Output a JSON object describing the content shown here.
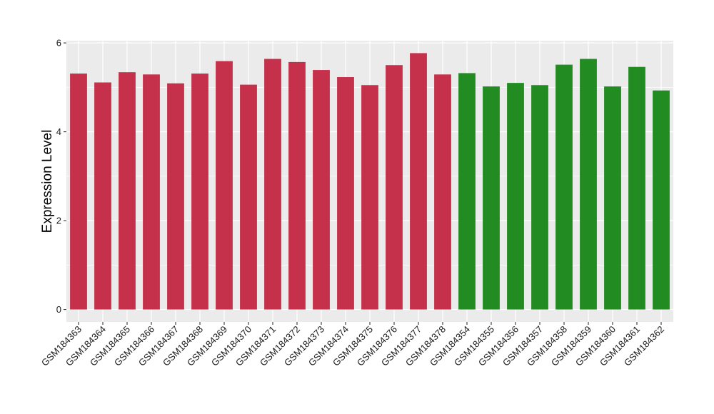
{
  "chart_data": {
    "type": "bar",
    "title": "",
    "xlabel": "",
    "ylabel": "Expression Level",
    "ylim": [
      -0.28,
      6.05
    ],
    "yticks": [
      0,
      2,
      4,
      6
    ],
    "grid": true,
    "legend": "none",
    "panel_background": "#ebebeb",
    "grid_color": "#ffffff",
    "group_colors": {
      "group_a": "#c5304a",
      "group_b": "#228b22"
    },
    "bars": [
      {
        "label": "GSM184363",
        "value": 5.31,
        "group": "group_a"
      },
      {
        "label": "GSM184364",
        "value": 5.11,
        "group": "group_a"
      },
      {
        "label": "GSM184365",
        "value": 5.34,
        "group": "group_a"
      },
      {
        "label": "GSM184366",
        "value": 5.29,
        "group": "group_a"
      },
      {
        "label": "GSM184367",
        "value": 5.09,
        "group": "group_a"
      },
      {
        "label": "GSM184368",
        "value": 5.31,
        "group": "group_a"
      },
      {
        "label": "GSM184369",
        "value": 5.59,
        "group": "group_a"
      },
      {
        "label": "GSM184370",
        "value": 5.06,
        "group": "group_a"
      },
      {
        "label": "GSM184371",
        "value": 5.64,
        "group": "group_a"
      },
      {
        "label": "GSM184372",
        "value": 5.57,
        "group": "group_a"
      },
      {
        "label": "GSM184373",
        "value": 5.39,
        "group": "group_a"
      },
      {
        "label": "GSM184374",
        "value": 5.23,
        "group": "group_a"
      },
      {
        "label": "GSM184375",
        "value": 5.05,
        "group": "group_a"
      },
      {
        "label": "GSM184376",
        "value": 5.5,
        "group": "group_a"
      },
      {
        "label": "GSM184377",
        "value": 5.77,
        "group": "group_a"
      },
      {
        "label": "GSM184378",
        "value": 5.29,
        "group": "group_a"
      },
      {
        "label": "GSM184354",
        "value": 5.32,
        "group": "group_b"
      },
      {
        "label": "GSM184355",
        "value": 5.02,
        "group": "group_b"
      },
      {
        "label": "GSM184356",
        "value": 5.1,
        "group": "group_b"
      },
      {
        "label": "GSM184357",
        "value": 5.05,
        "group": "group_b"
      },
      {
        "label": "GSM184358",
        "value": 5.51,
        "group": "group_b"
      },
      {
        "label": "GSM184359",
        "value": 5.64,
        "group": "group_b"
      },
      {
        "label": "GSM184360",
        "value": 5.02,
        "group": "group_b"
      },
      {
        "label": "GSM184361",
        "value": 5.46,
        "group": "group_b"
      },
      {
        "label": "GSM184362",
        "value": 4.93,
        "group": "group_b"
      }
    ]
  }
}
